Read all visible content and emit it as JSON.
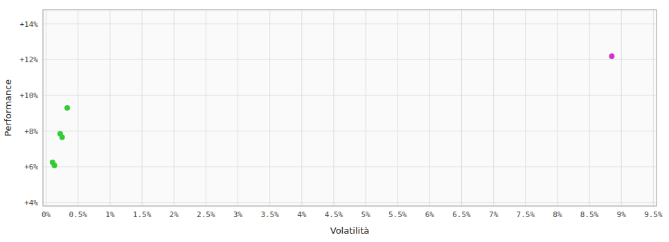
{
  "chart_data": {
    "type": "scatter",
    "x_label": "Volatilità",
    "y_label": "Performance",
    "xlim": [
      -0.0005,
      0.0955
    ],
    "ylim": [
      0.038,
      0.148
    ],
    "xticks": [
      {
        "value": 0.0,
        "label": "0%"
      },
      {
        "value": 0.005,
        "label": "0.5%"
      },
      {
        "value": 0.01,
        "label": "1%"
      },
      {
        "value": 0.015,
        "label": "1.5%"
      },
      {
        "value": 0.02,
        "label": "2%"
      },
      {
        "value": 0.025,
        "label": "2.5%"
      },
      {
        "value": 0.03,
        "label": "3%"
      },
      {
        "value": 0.035,
        "label": "3.5%"
      },
      {
        "value": 0.04,
        "label": "4%"
      },
      {
        "value": 0.045,
        "label": "4.5%"
      },
      {
        "value": 0.05,
        "label": "5%"
      },
      {
        "value": 0.055,
        "label": "5.5%"
      },
      {
        "value": 0.06,
        "label": "6%"
      },
      {
        "value": 0.065,
        "label": "6.5%"
      },
      {
        "value": 0.07,
        "label": "7%"
      },
      {
        "value": 0.075,
        "label": "7.5%"
      },
      {
        "value": 0.08,
        "label": "8%"
      },
      {
        "value": 0.085,
        "label": "8.5%"
      },
      {
        "value": 0.09,
        "label": "9%"
      },
      {
        "value": 0.095,
        "label": "9.5%"
      }
    ],
    "yticks": [
      {
        "value": 0.04,
        "label": "+4%"
      },
      {
        "value": 0.06,
        "label": "+6%"
      },
      {
        "value": 0.08,
        "label": "+8%"
      },
      {
        "value": 0.1,
        "label": "+10%"
      },
      {
        "value": 0.12,
        "label": "+12%"
      },
      {
        "value": 0.14,
        "label": "+14%"
      }
    ],
    "grid": true,
    "series": [
      {
        "color": "#33cc33",
        "x": [
          0.0033,
          0.0022,
          0.0025,
          0.001,
          0.0013
        ],
        "values": [
          0.093,
          0.0785,
          0.0765,
          0.0625,
          0.0608
        ]
      },
      {
        "color": "#cc33cc",
        "x": [
          0.0885
        ],
        "values": [
          0.122
        ]
      }
    ]
  }
}
